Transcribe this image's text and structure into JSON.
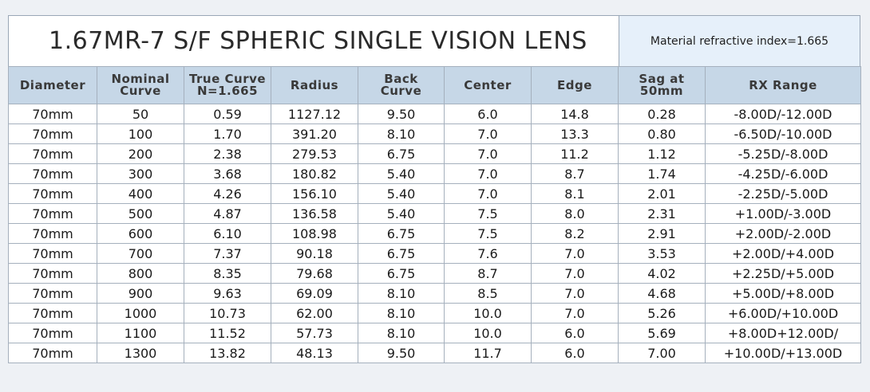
{
  "title": "1.67MR-7 S/F SPHERIC SINGLE VISION LENS",
  "material_note": "Material refractive index=1.665",
  "columns": [
    {
      "line1": "Diameter",
      "line2": ""
    },
    {
      "line1": "Nominal",
      "line2": "Curve"
    },
    {
      "line1": "True Curve",
      "line2": "N=1.665"
    },
    {
      "line1": "Radius",
      "line2": ""
    },
    {
      "line1": "Back",
      "line2": "Curve"
    },
    {
      "line1": "Center",
      "line2": ""
    },
    {
      "line1": "Edge",
      "line2": ""
    },
    {
      "line1": "Sag at",
      "line2": "50mm"
    },
    {
      "line1": "RX Range",
      "line2": ""
    }
  ],
  "rows": [
    [
      "70mm",
      "50",
      "0.59",
      "1127.12",
      "9.50",
      "6.0",
      "14.8",
      "0.28",
      "-8.00D/-12.00D"
    ],
    [
      "70mm",
      "100",
      "1.70",
      "391.20",
      "8.10",
      "7.0",
      "13.3",
      "0.80",
      "-6.50D/-10.00D"
    ],
    [
      "70mm",
      "200",
      "2.38",
      "279.53",
      "6.75",
      "7.0",
      "11.2",
      "1.12",
      "-5.25D/-8.00D"
    ],
    [
      "70mm",
      "300",
      "3.68",
      "180.82",
      "5.40",
      "7.0",
      "8.7",
      "1.74",
      "-4.25D/-6.00D"
    ],
    [
      "70mm",
      "400",
      "4.26",
      "156.10",
      "5.40",
      "7.0",
      "8.1",
      "2.01",
      "-2.25D/-5.00D"
    ],
    [
      "70mm",
      "500",
      "4.87",
      "136.58",
      "5.40",
      "7.5",
      "8.0",
      "2.31",
      "+1.00D/-3.00D"
    ],
    [
      "70mm",
      "600",
      "6.10",
      "108.98",
      "6.75",
      "7.5",
      "8.2",
      "2.91",
      "+2.00D/-2.00D"
    ],
    [
      "70mm",
      "700",
      "7.37",
      "90.18",
      "6.75",
      "7.6",
      "7.0",
      "3.53",
      "+2.00D/+4.00D"
    ],
    [
      "70mm",
      "800",
      "8.35",
      "79.68",
      "6.75",
      "8.7",
      "7.0",
      "4.02",
      "+2.25D/+5.00D"
    ],
    [
      "70mm",
      "900",
      "9.63",
      "69.09",
      "8.10",
      "8.5",
      "7.0",
      "4.68",
      "+5.00D/+8.00D"
    ],
    [
      "70mm",
      "1000",
      "10.73",
      "62.00",
      "8.10",
      "10.0",
      "7.0",
      "5.26",
      "+6.00D/+10.00D"
    ],
    [
      "70mm",
      "1100",
      "11.52",
      "57.73",
      "8.10",
      "10.0",
      "6.0",
      "5.69",
      "+8.00D+12.00D/"
    ],
    [
      "70mm",
      "1300",
      "13.82",
      "48.13",
      "9.50",
      "11.7",
      "6.0",
      "7.00",
      "+10.00D/+13.00D"
    ]
  ]
}
